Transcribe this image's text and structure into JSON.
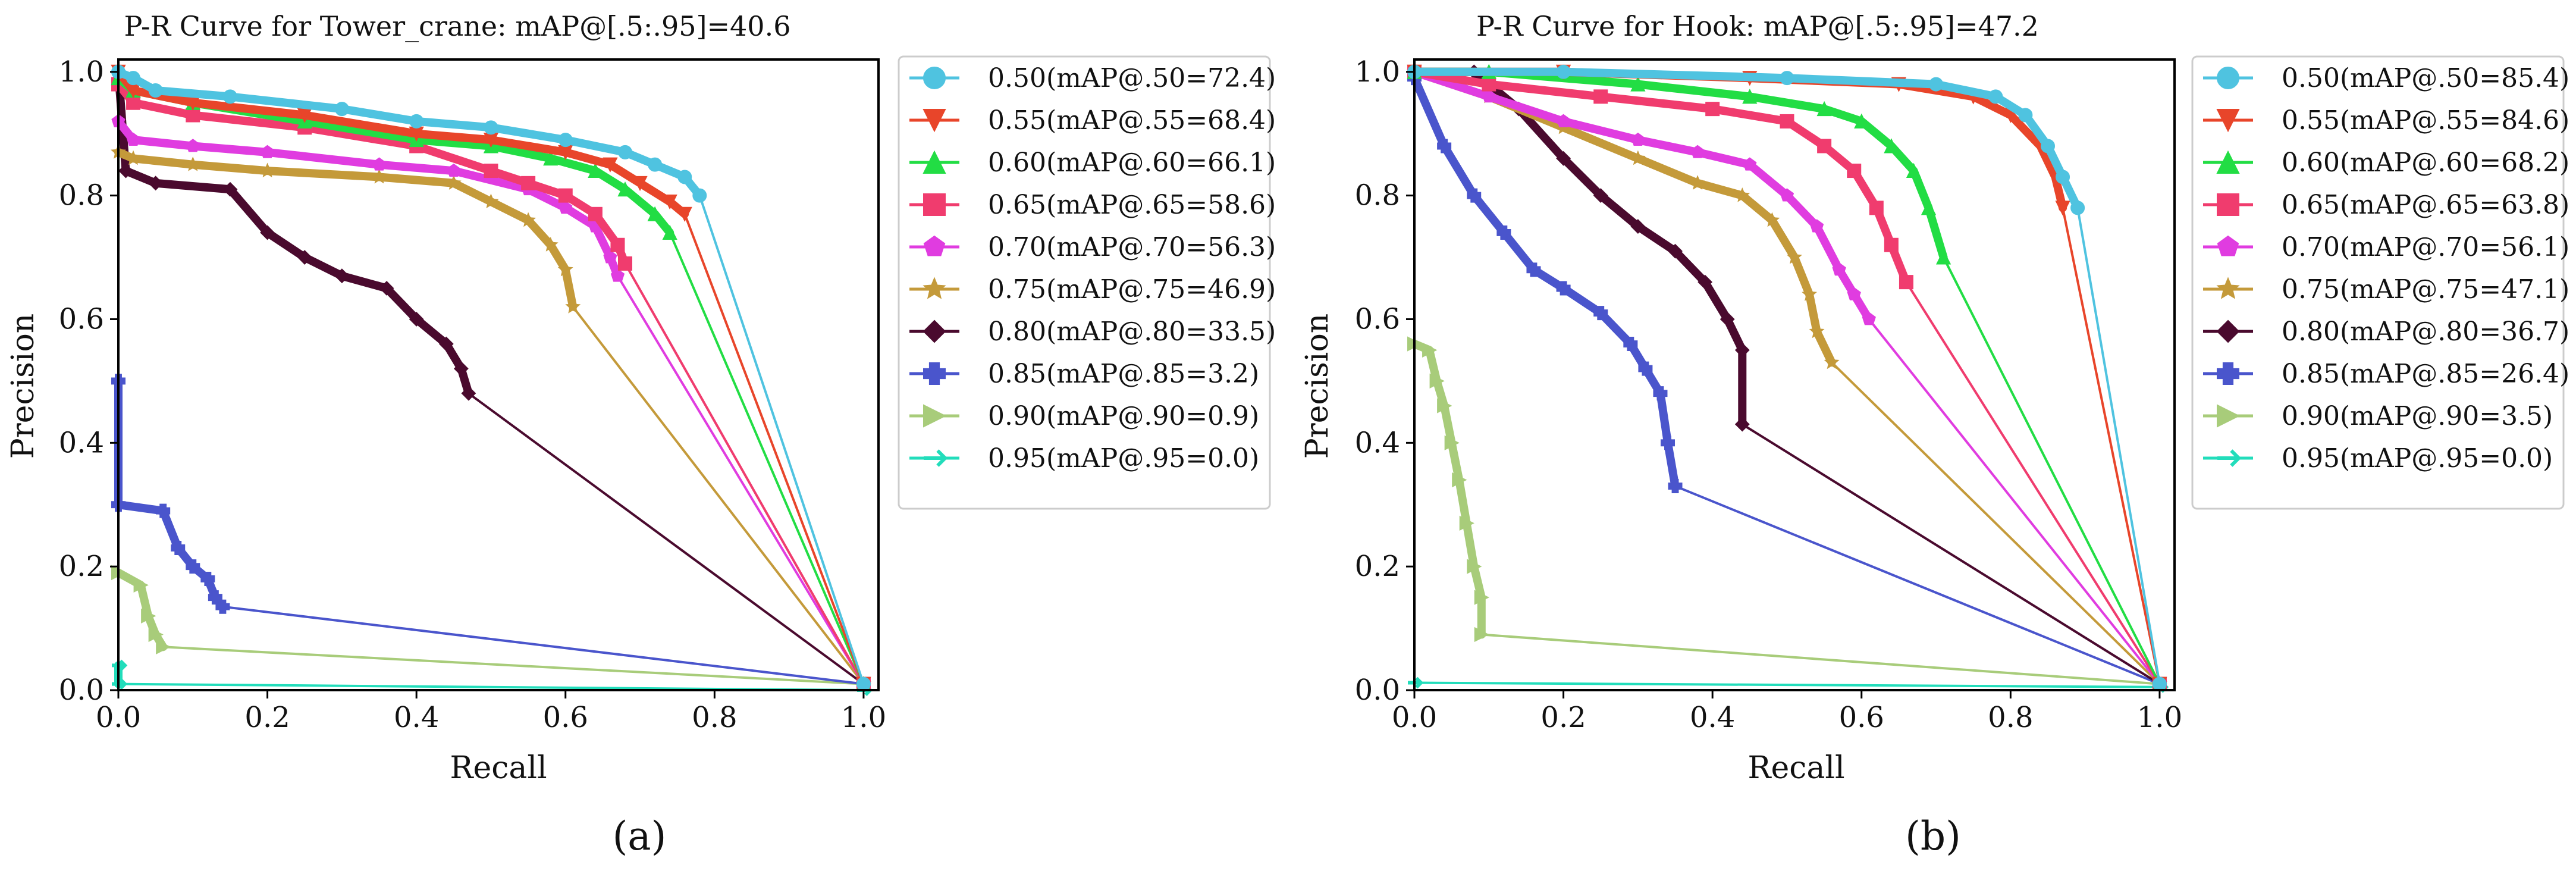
{
  "chart_data": [
    {
      "type": "line",
      "title": "P-R Curve for Tower_crane: mAP@[.5:.95]=40.6",
      "xlabel": "Recall",
      "ylabel": "Precision",
      "xlim": [
        0,
        1.02
      ],
      "ylim": [
        0,
        1.02
      ],
      "xticks": [
        "0.0",
        "0.2",
        "0.4",
        "0.6",
        "0.8",
        "1.0"
      ],
      "yticks": [
        "0.0",
        "0.2",
        "0.4",
        "0.6",
        "0.8",
        "1.0"
      ],
      "grid": false,
      "legend_position": "outside-right",
      "caption": "(a)",
      "series": [
        {
          "name": "0.50(mAP@.50=72.4)",
          "color": "#4fc3e0",
          "marker": "circle",
          "points": [
            [
              0.0,
              1.0
            ],
            [
              0.02,
              0.99
            ],
            [
              0.05,
              0.97
            ],
            [
              0.15,
              0.96
            ],
            [
              0.3,
              0.94
            ],
            [
              0.4,
              0.92
            ],
            [
              0.5,
              0.91
            ],
            [
              0.6,
              0.89
            ],
            [
              0.68,
              0.87
            ],
            [
              0.72,
              0.85
            ],
            [
              0.76,
              0.83
            ],
            [
              0.78,
              0.8
            ],
            [
              1.0,
              0.01
            ]
          ]
        },
        {
          "name": "0.55(mAP@.55=68.4)",
          "color": "#e8452a",
          "marker": "triangle-down",
          "points": [
            [
              0.0,
              1.0
            ],
            [
              0.02,
              0.97
            ],
            [
              0.1,
              0.95
            ],
            [
              0.25,
              0.93
            ],
            [
              0.4,
              0.9
            ],
            [
              0.5,
              0.89
            ],
            [
              0.6,
              0.87
            ],
            [
              0.66,
              0.85
            ],
            [
              0.7,
              0.82
            ],
            [
              0.74,
              0.79
            ],
            [
              0.76,
              0.77
            ],
            [
              1.0,
              0.01
            ]
          ]
        },
        {
          "name": "0.60(mAP@.60=66.1)",
          "color": "#22dd44",
          "marker": "triangle-up",
          "points": [
            [
              0.0,
              0.99
            ],
            [
              0.02,
              0.97
            ],
            [
              0.1,
              0.95
            ],
            [
              0.25,
              0.92
            ],
            [
              0.4,
              0.89
            ],
            [
              0.5,
              0.88
            ],
            [
              0.58,
              0.86
            ],
            [
              0.64,
              0.84
            ],
            [
              0.68,
              0.81
            ],
            [
              0.72,
              0.77
            ],
            [
              0.74,
              0.74
            ],
            [
              1.0,
              0.01
            ]
          ]
        },
        {
          "name": "0.65(mAP@.65=58.6)",
          "color": "#f03c6e",
          "marker": "square",
          "points": [
            [
              0.0,
              0.98
            ],
            [
              0.02,
              0.95
            ],
            [
              0.1,
              0.93
            ],
            [
              0.25,
              0.91
            ],
            [
              0.4,
              0.88
            ],
            [
              0.5,
              0.84
            ],
            [
              0.55,
              0.82
            ],
            [
              0.6,
              0.8
            ],
            [
              0.64,
              0.77
            ],
            [
              0.67,
              0.72
            ],
            [
              0.68,
              0.69
            ],
            [
              1.0,
              0.01
            ]
          ]
        },
        {
          "name": "0.70(mAP@.70=56.3)",
          "color": "#e03ce0",
          "marker": "pentagon",
          "points": [
            [
              0.0,
              0.92
            ],
            [
              0.02,
              0.89
            ],
            [
              0.1,
              0.88
            ],
            [
              0.2,
              0.87
            ],
            [
              0.35,
              0.85
            ],
            [
              0.45,
              0.84
            ],
            [
              0.55,
              0.81
            ],
            [
              0.6,
              0.78
            ],
            [
              0.64,
              0.75
            ],
            [
              0.66,
              0.7
            ],
            [
              0.67,
              0.67
            ],
            [
              1.0,
              0.01
            ]
          ]
        },
        {
          "name": "0.75(mAP@.75=46.9)",
          "color": "#c49a3a",
          "marker": "star",
          "points": [
            [
              0.0,
              0.87
            ],
            [
              0.02,
              0.86
            ],
            [
              0.1,
              0.85
            ],
            [
              0.2,
              0.84
            ],
            [
              0.35,
              0.83
            ],
            [
              0.45,
              0.82
            ],
            [
              0.5,
              0.79
            ],
            [
              0.55,
              0.76
            ],
            [
              0.58,
              0.72
            ],
            [
              0.6,
              0.68
            ],
            [
              0.61,
              0.62
            ],
            [
              1.0,
              0.01
            ]
          ]
        },
        {
          "name": "0.80(mAP@.80=33.5)",
          "color": "#4a0a2e",
          "marker": "diamond",
          "points": [
            [
              0.0,
              1.0
            ],
            [
              0.01,
              0.84
            ],
            [
              0.05,
              0.82
            ],
            [
              0.15,
              0.81
            ],
            [
              0.2,
              0.74
            ],
            [
              0.25,
              0.7
            ],
            [
              0.3,
              0.67
            ],
            [
              0.36,
              0.65
            ],
            [
              0.4,
              0.6
            ],
            [
              0.44,
              0.56
            ],
            [
              0.46,
              0.52
            ],
            [
              0.47,
              0.48
            ],
            [
              1.0,
              0.01
            ]
          ]
        },
        {
          "name": "0.85(mAP@.85=3.2)",
          "color": "#4a55cc",
          "marker": "plus",
          "points": [
            [
              0.0,
              0.5
            ],
            [
              0.0,
              0.3
            ],
            [
              0.06,
              0.29
            ],
            [
              0.08,
              0.23
            ],
            [
              0.1,
              0.2
            ],
            [
              0.12,
              0.18
            ],
            [
              0.13,
              0.15
            ],
            [
              0.14,
              0.135
            ],
            [
              1.0,
              0.01
            ]
          ]
        },
        {
          "name": "0.90(mAP@.90=0.9)",
          "color": "#a8cc7a",
          "marker": "triangle-right",
          "points": [
            [
              0.0,
              0.19
            ],
            [
              0.03,
              0.17
            ],
            [
              0.04,
              0.12
            ],
            [
              0.05,
              0.09
            ],
            [
              0.06,
              0.07
            ],
            [
              1.0,
              0.01
            ]
          ]
        },
        {
          "name": "0.95(mAP@.95=0.0)",
          "color": "#22ddbb",
          "marker": "arrow",
          "points": [
            [
              0.0,
              0.04
            ],
            [
              0.0,
              0.01
            ],
            [
              1.0,
              0.0
            ]
          ]
        }
      ]
    },
    {
      "type": "line",
      "title": "P-R Curve for Hook: mAP@[.5:.95]=47.2",
      "xlabel": "Recall",
      "ylabel": "Precision",
      "xlim": [
        0,
        1.02
      ],
      "ylim": [
        0,
        1.02
      ],
      "xticks": [
        "0.0",
        "0.2",
        "0.4",
        "0.6",
        "0.8",
        "1.0"
      ],
      "yticks": [
        "0.0",
        "0.2",
        "0.4",
        "0.6",
        "0.8",
        "1.0"
      ],
      "grid": false,
      "legend_position": "outside-right",
      "caption": "(b)",
      "series": [
        {
          "name": "0.50(mAP@.50=85.4)",
          "color": "#4fc3e0",
          "marker": "circle",
          "points": [
            [
              0.0,
              1.0
            ],
            [
              0.2,
              1.0
            ],
            [
              0.5,
              0.99
            ],
            [
              0.7,
              0.98
            ],
            [
              0.78,
              0.96
            ],
            [
              0.82,
              0.93
            ],
            [
              0.85,
              0.88
            ],
            [
              0.87,
              0.83
            ],
            [
              0.89,
              0.78
            ],
            [
              1.0,
              0.01
            ]
          ]
        },
        {
          "name": "0.55(mAP@.55=84.6)",
          "color": "#e8452a",
          "marker": "triangle-down",
          "points": [
            [
              0.0,
              1.0
            ],
            [
              0.2,
              1.0
            ],
            [
              0.45,
              0.99
            ],
            [
              0.65,
              0.98
            ],
            [
              0.75,
              0.96
            ],
            [
              0.8,
              0.93
            ],
            [
              0.84,
              0.88
            ],
            [
              0.86,
              0.83
            ],
            [
              0.87,
              0.78
            ],
            [
              1.0,
              0.01
            ]
          ]
        },
        {
          "name": "0.60(mAP@.60=68.2)",
          "color": "#22dd44",
          "marker": "triangle-up",
          "points": [
            [
              0.0,
              1.0
            ],
            [
              0.1,
              1.0
            ],
            [
              0.3,
              0.98
            ],
            [
              0.45,
              0.96
            ],
            [
              0.55,
              0.94
            ],
            [
              0.6,
              0.92
            ],
            [
              0.64,
              0.88
            ],
            [
              0.67,
              0.84
            ],
            [
              0.69,
              0.78
            ],
            [
              0.71,
              0.7
            ],
            [
              1.0,
              0.01
            ]
          ]
        },
        {
          "name": "0.65(mAP@.65=63.8)",
          "color": "#f03c6e",
          "marker": "square",
          "points": [
            [
              0.0,
              1.0
            ],
            [
              0.1,
              0.98
            ],
            [
              0.25,
              0.96
            ],
            [
              0.4,
              0.94
            ],
            [
              0.5,
              0.92
            ],
            [
              0.55,
              0.88
            ],
            [
              0.59,
              0.84
            ],
            [
              0.62,
              0.78
            ],
            [
              0.64,
              0.72
            ],
            [
              0.66,
              0.66
            ],
            [
              1.0,
              0.01
            ]
          ]
        },
        {
          "name": "0.70(mAP@.70=56.1)",
          "color": "#e03ce0",
          "marker": "pentagon",
          "points": [
            [
              0.0,
              1.0
            ],
            [
              0.1,
              0.96
            ],
            [
              0.2,
              0.92
            ],
            [
              0.3,
              0.89
            ],
            [
              0.38,
              0.87
            ],
            [
              0.45,
              0.85
            ],
            [
              0.5,
              0.8
            ],
            [
              0.54,
              0.75
            ],
            [
              0.57,
              0.68
            ],
            [
              0.59,
              0.64
            ],
            [
              0.61,
              0.6
            ],
            [
              1.0,
              0.01
            ]
          ]
        },
        {
          "name": "0.75(mAP@.75=47.1)",
          "color": "#c49a3a",
          "marker": "star",
          "points": [
            [
              0.0,
              1.0
            ],
            [
              0.1,
              0.96
            ],
            [
              0.2,
              0.91
            ],
            [
              0.3,
              0.86
            ],
            [
              0.38,
              0.82
            ],
            [
              0.44,
              0.8
            ],
            [
              0.48,
              0.76
            ],
            [
              0.51,
              0.7
            ],
            [
              0.53,
              0.64
            ],
            [
              0.54,
              0.58
            ],
            [
              0.56,
              0.53
            ],
            [
              1.0,
              0.01
            ]
          ]
        },
        {
          "name": "0.80(mAP@.80=36.7)",
          "color": "#4a0a2e",
          "marker": "diamond",
          "points": [
            [
              0.0,
              1.0
            ],
            [
              0.08,
              1.0
            ],
            [
              0.14,
              0.94
            ],
            [
              0.2,
              0.86
            ],
            [
              0.25,
              0.8
            ],
            [
              0.3,
              0.75
            ],
            [
              0.35,
              0.71
            ],
            [
              0.39,
              0.66
            ],
            [
              0.42,
              0.6
            ],
            [
              0.44,
              0.55
            ],
            [
              0.44,
              0.43
            ],
            [
              1.0,
              0.01
            ]
          ]
        },
        {
          "name": "0.85(mAP@.85=26.4)",
          "color": "#4a55cc",
          "marker": "plus",
          "points": [
            [
              0.0,
              0.99
            ],
            [
              0.04,
              0.88
            ],
            [
              0.08,
              0.8
            ],
            [
              0.12,
              0.74
            ],
            [
              0.16,
              0.68
            ],
            [
              0.2,
              0.65
            ],
            [
              0.25,
              0.61
            ],
            [
              0.29,
              0.56
            ],
            [
              0.31,
              0.52
            ],
            [
              0.33,
              0.48
            ],
            [
              0.34,
              0.4
            ],
            [
              0.35,
              0.33
            ],
            [
              1.0,
              0.01
            ]
          ]
        },
        {
          "name": "0.90(mAP@.90=3.5)",
          "color": "#a8cc7a",
          "marker": "triangle-right",
          "points": [
            [
              0.0,
              0.56
            ],
            [
              0.02,
              0.55
            ],
            [
              0.03,
              0.5
            ],
            [
              0.04,
              0.46
            ],
            [
              0.05,
              0.4
            ],
            [
              0.06,
              0.34
            ],
            [
              0.07,
              0.27
            ],
            [
              0.08,
              0.2
            ],
            [
              0.09,
              0.15
            ],
            [
              0.09,
              0.09
            ],
            [
              1.0,
              0.01
            ]
          ]
        },
        {
          "name": "0.95(mAP@.95=0.0)",
          "color": "#22ddbb",
          "marker": "arrow",
          "points": [
            [
              0.0,
              0.012
            ],
            [
              1.0,
              0.005
            ]
          ]
        }
      ]
    }
  ]
}
